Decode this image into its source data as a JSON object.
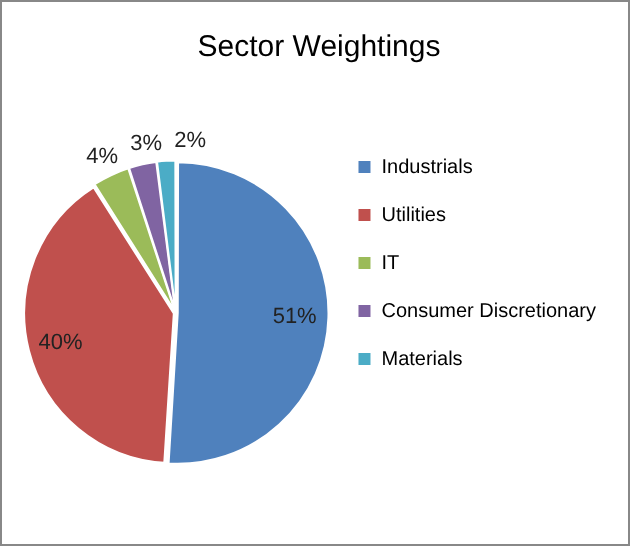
{
  "chart_data": {
    "type": "pie",
    "title": "Sector Weightings",
    "categories": [
      "Industrials",
      "Utilities",
      "IT",
      "Consumer Discretionary",
      "Materials"
    ],
    "values": [
      51,
      40,
      4,
      3,
      2
    ],
    "colors": [
      "#4f81bd",
      "#c0504d",
      "#9bbb59",
      "#8064a2",
      "#4bacc6"
    ],
    "value_labels": [
      "51%",
      "40%",
      "4%",
      "3%",
      "2%"
    ],
    "legend": "right"
  }
}
